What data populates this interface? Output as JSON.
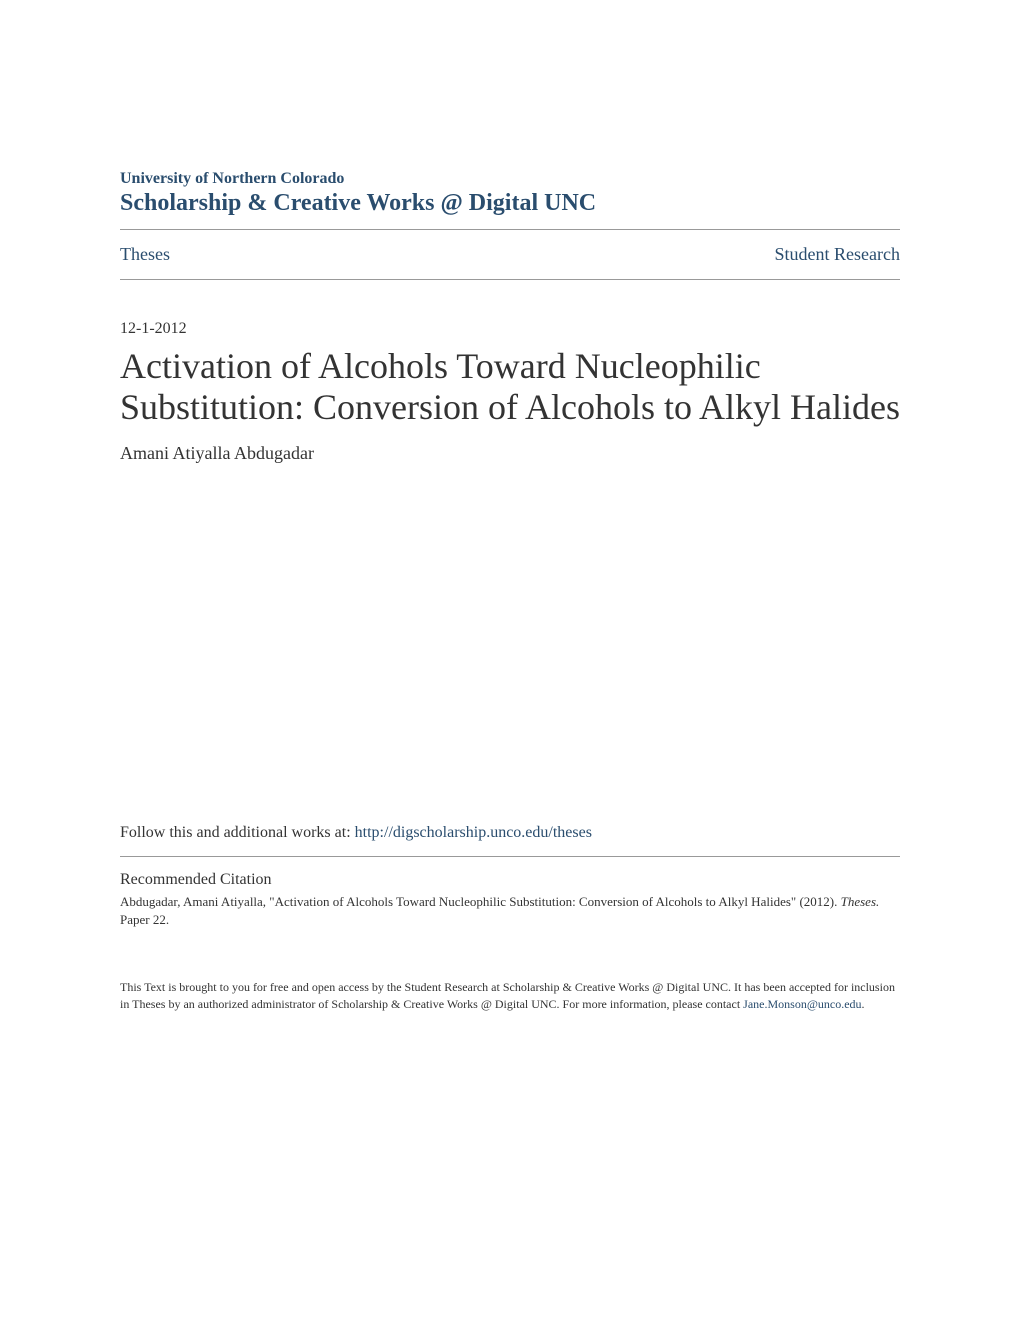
{
  "header": {
    "institution": "University of Northern Colorado",
    "repository": "Scholarship & Creative Works @ Digital UNC"
  },
  "nav": {
    "left": "Theses",
    "right": "Student Research"
  },
  "date": "12-1-2012",
  "title": "Activation of Alcohols Toward Nucleophilic Substitution: Conversion of Alcohols to Alkyl Halides",
  "author": "Amani Atiyalla Abdugadar",
  "follow": {
    "prefix": "Follow this and additional works at: ",
    "url": "http://digscholarship.unco.edu/theses"
  },
  "citation": {
    "heading": "Recommended Citation",
    "author_part": "Abdugadar, Amani Atiyalla, \"Activation of Alcohols Toward Nucleophilic Substitution: Conversion of Alcohols to Alkyl Halides\" (2012). ",
    "series": "Theses.",
    "paper": " Paper 22."
  },
  "footer": {
    "text": "This Text is brought to you for free and open access by the Student Research at Scholarship & Creative Works @ Digital UNC. It has been accepted for inclusion in Theses by an authorized administrator of Scholarship & Creative Works @ Digital UNC. For more information, please contact ",
    "email": "Jane.Monson@unco.edu",
    "suffix": "."
  },
  "colors": {
    "link": "#2a4d6e",
    "text": "#333333",
    "divider": "#999999",
    "background": "#ffffff"
  }
}
